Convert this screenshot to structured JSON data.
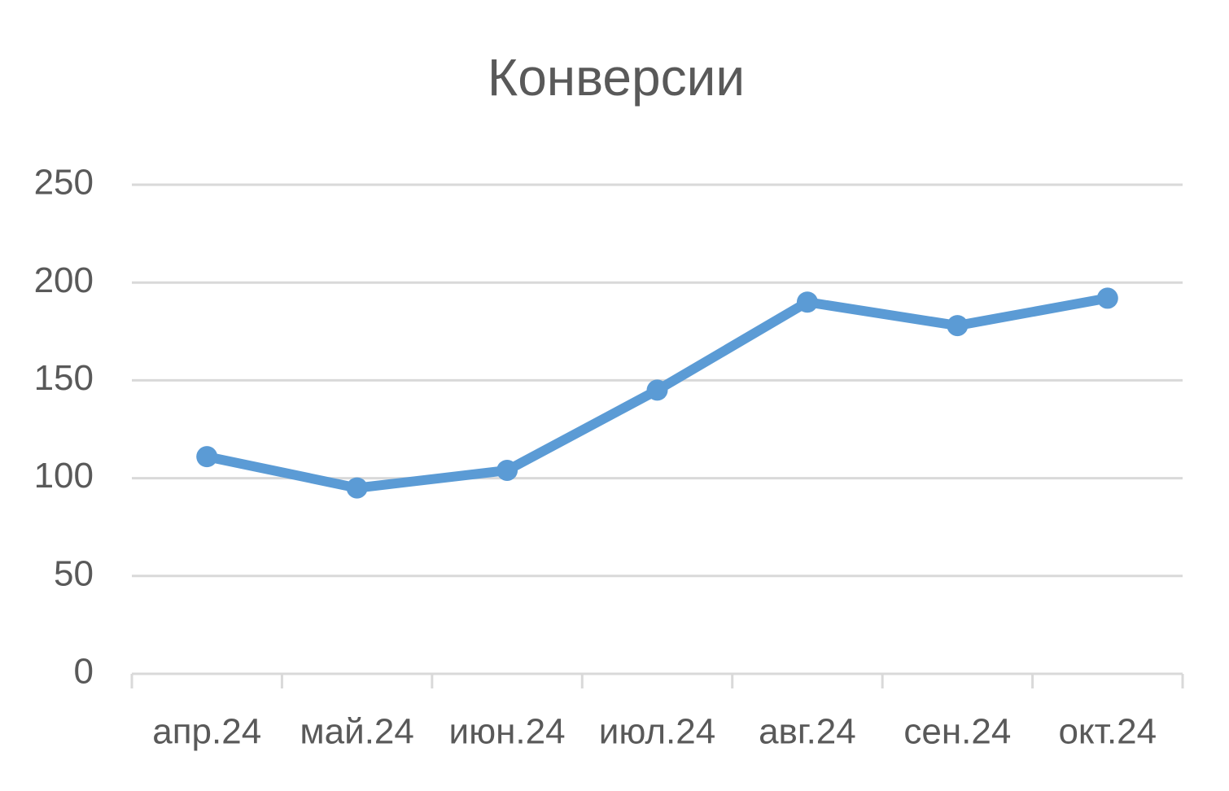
{
  "chart_data": {
    "type": "line",
    "title": "Конверсии",
    "categories": [
      "апр.24",
      "май.24",
      "июн.24",
      "июл.24",
      "авг.24",
      "сен.24",
      "окт.24"
    ],
    "series": [
      {
        "name": "Конверсии",
        "color": "#5b9bd5",
        "values": [
          111,
          95,
          104,
          145,
          190,
          178,
          192
        ]
      }
    ],
    "ylim": [
      0,
      250
    ],
    "yticks": [
      0,
      50,
      100,
      150,
      200,
      250
    ],
    "grid": true
  }
}
